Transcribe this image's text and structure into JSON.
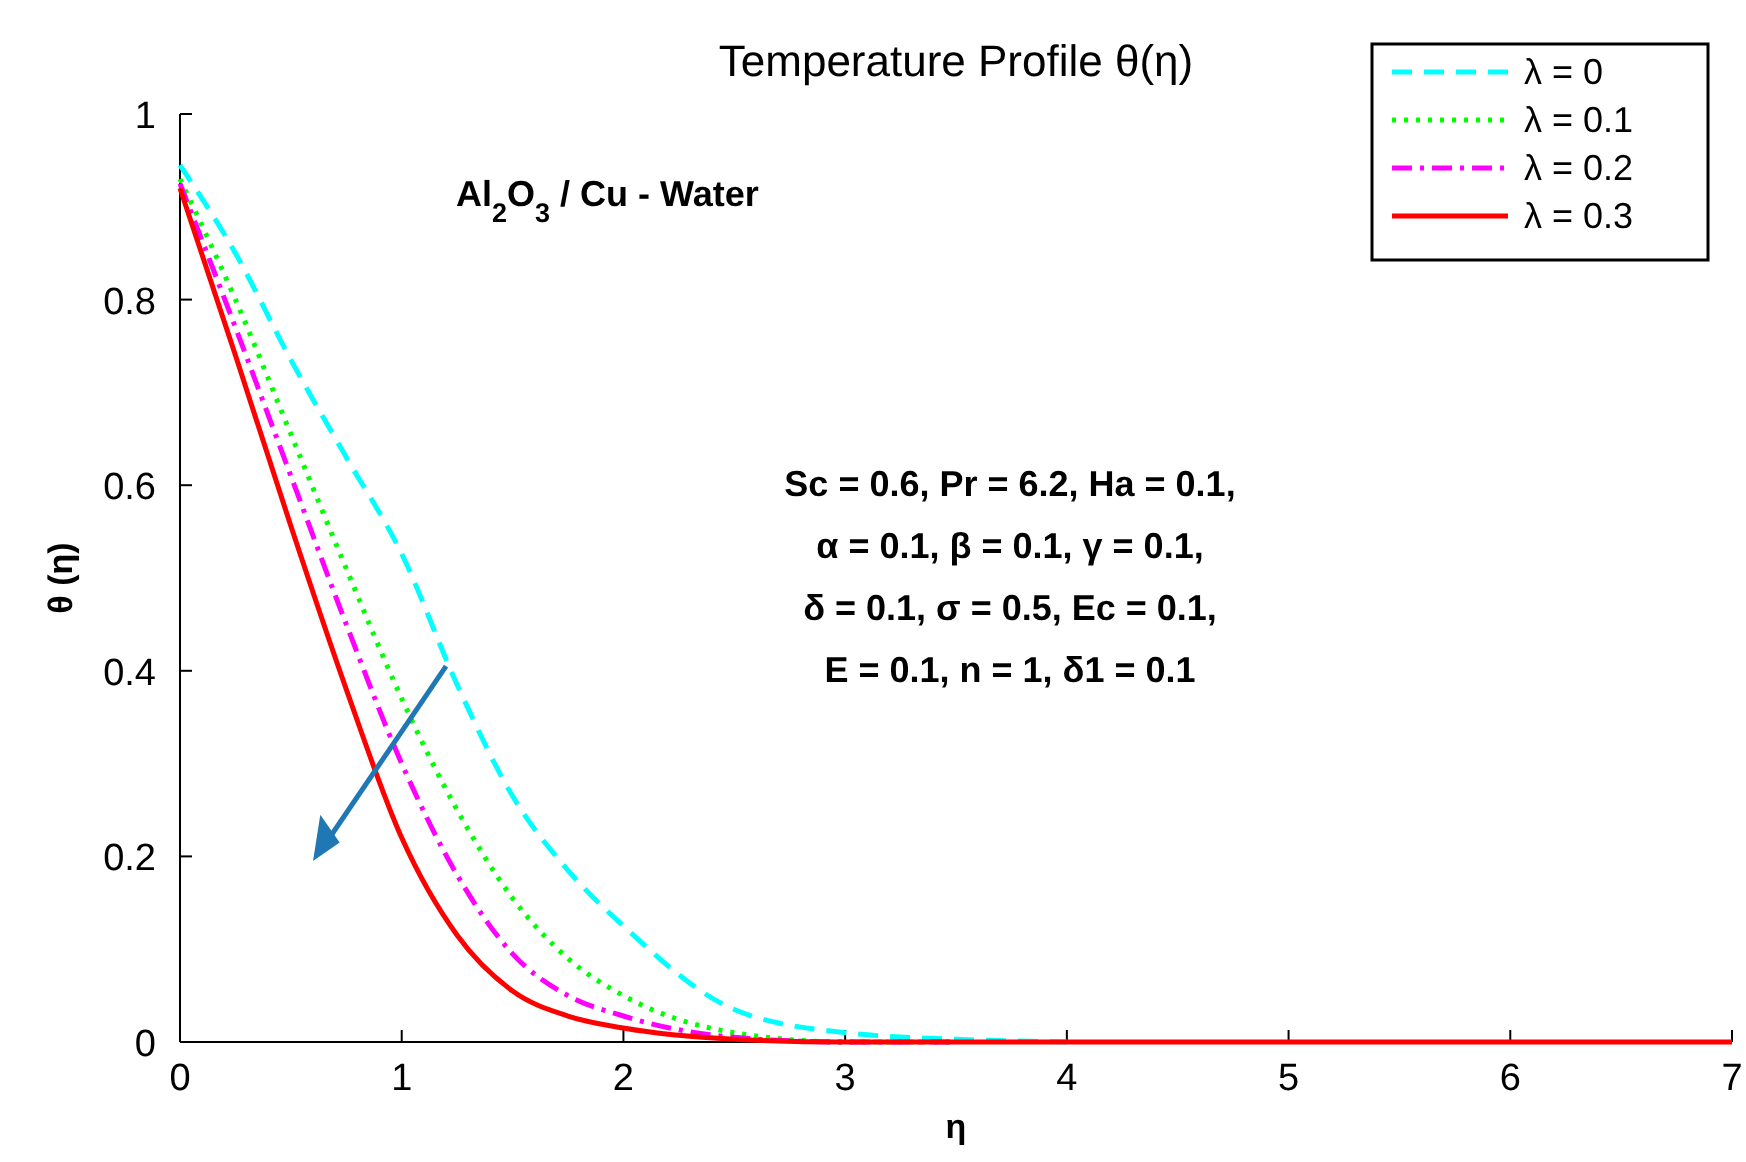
{
  "chart_data": {
    "type": "line",
    "title": "Temperature Profile θ(η)",
    "xlabel": "η",
    "ylabel": "θ (η)",
    "annotations": [
      "Al$_{2}$O$_{3}$ / Cu - Water",
      "Sc = 0.6, Pr = 6.2, Ha = 0.1,\nα = 0.1, β = 0.1, γ = 0.1,\nδ = 0.1, σ = 0.5, Ec = 0.1,\nE = 0.1, n = 1, δ1 = 0.1"
    ],
    "x": [
      0,
      0.25,
      0.5,
      0.75,
      1,
      1.25,
      1.5,
      1.75,
      2,
      2.5,
      3,
      3.5,
      4,
      5,
      6,
      7
    ],
    "series": [
      {
        "name": "λ = 0",
        "color": "#00ffff",
        "line_style": "dashed",
        "values": [
          0.945,
          0.85,
          0.735,
          0.63,
          0.526,
          0.385,
          0.265,
          0.185,
          0.125,
          0.035,
          0.01,
          0.003,
          0,
          null,
          null,
          null
        ]
      },
      {
        "name": "λ = 0.1",
        "color": "#00ff00",
        "line_style": "dotted",
        "values": [
          0.93,
          0.8,
          0.655,
          0.51,
          0.37,
          0.25,
          0.155,
          0.09,
          0.05,
          0.01,
          0,
          0,
          null,
          null,
          null,
          null
        ]
      },
      {
        "name": "λ = 0.2",
        "color": "#ff00ff",
        "line_style": "dashdot",
        "values": [
          0.925,
          0.77,
          0.61,
          0.45,
          0.3,
          0.18,
          0.095,
          0.05,
          0.028,
          0.005,
          0,
          0,
          null,
          null,
          null,
          null
        ]
      },
      {
        "name": "λ = 0.3",
        "color": "#ff0000",
        "line_style": "solid",
        "values": [
          0.92,
          0.74,
          0.556,
          0.38,
          0.22,
          0.115,
          0.055,
          0.028,
          0.015,
          0.003,
          0,
          0,
          0,
          0,
          0,
          0
        ]
      }
    ],
    "xlim": [
      0,
      7
    ],
    "ylim": [
      0,
      1
    ],
    "xticks": [
      0,
      1,
      2,
      3,
      4,
      5,
      6,
      7
    ],
    "yticks": [
      0,
      0.2,
      0.4,
      0.6,
      0.8,
      1
    ],
    "legend": "top right",
    "grid": false,
    "marker": "none"
  }
}
